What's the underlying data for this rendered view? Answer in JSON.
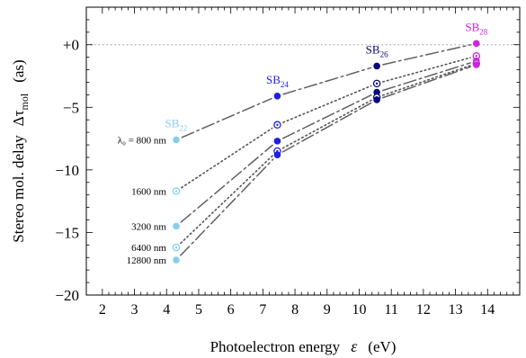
{
  "chart_data": {
    "type": "line",
    "xlabel": "Photoelectron energy",
    "xlabel_symbol": "ε",
    "xlabel_unit": "(eV)",
    "ylabel": "Stereo mol. delay",
    "ylabel_symbol": "Δτ",
    "ylabel_subscript": "mol",
    "ylabel_unit": "(as)",
    "xlim": [
      1.5,
      15.0
    ],
    "ylim": [
      -20,
      3
    ],
    "x_ticks": [
      2,
      3,
      4,
      5,
      6,
      7,
      8,
      9,
      10,
      11,
      12,
      13,
      14
    ],
    "y_ticks": [
      {
        "value": 0,
        "label": "+0"
      },
      {
        "value": -5,
        "label": "−5"
      },
      {
        "value": -10,
        "label": "−10"
      },
      {
        "value": -15,
        "label": "−15"
      },
      {
        "value": -20,
        "label": "−20"
      }
    ],
    "reference_line": 0,
    "sidebands": [
      {
        "base": "SB",
        "sub": "22",
        "x": 4.3,
        "color": "#87ceeb"
      },
      {
        "base": "SB",
        "sub": "24",
        "x": 7.45,
        "color": "#1f1fe6"
      },
      {
        "base": "SB",
        "sub": "26",
        "x": 10.55,
        "color": "#0a0a7a"
      },
      {
        "base": "SB",
        "sub": "28",
        "x": 13.65,
        "color": "#cc22dd"
      }
    ],
    "series": [
      {
        "name": "λ₀ = 800 nm",
        "style": "dashdot",
        "marker": "filled",
        "x": [
          4.3,
          7.45,
          10.55,
          13.65
        ],
        "y": [
          -7.6,
          -4.1,
          -1.7,
          0.1
        ]
      },
      {
        "name": "1600 nm",
        "style": "dotted",
        "marker": "open",
        "x": [
          4.3,
          7.45,
          10.55,
          13.65
        ],
        "y": [
          -11.7,
          -6.4,
          -3.1,
          -0.9
        ]
      },
      {
        "name": "3200 nm",
        "style": "dashdot",
        "marker": "filled",
        "x": [
          4.3,
          7.45,
          10.55,
          13.65
        ],
        "y": [
          -14.5,
          -7.7,
          -3.8,
          -1.3
        ]
      },
      {
        "name": "6400 nm",
        "style": "dotted",
        "marker": "open",
        "x": [
          4.3,
          7.45,
          10.55,
          13.65
        ],
        "y": [
          -16.2,
          -8.5,
          -4.2,
          -1.5
        ]
      },
      {
        "name": "12800 nm",
        "style": "dashdot",
        "marker": "filled",
        "x": [
          4.3,
          7.45,
          10.55,
          13.65
        ],
        "y": [
          -17.2,
          -8.8,
          -4.4,
          -1.6
        ]
      }
    ]
  }
}
